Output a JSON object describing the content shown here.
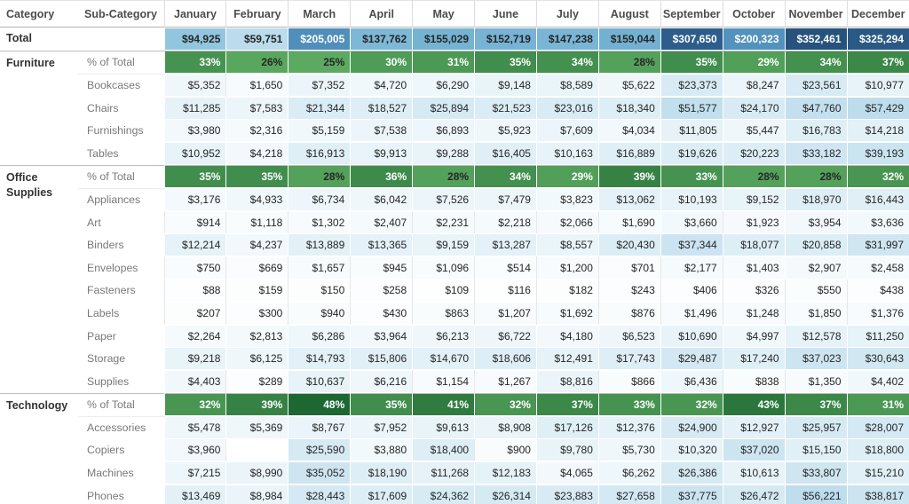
{
  "table": {
    "header": {
      "category": "Category",
      "subcategory": "Sub-Category"
    },
    "total_label": "Total",
    "pct_label": "% of Total"
  },
  "chart_data": {
    "type": "heatmap",
    "title": "Sales highlight table by Category / Sub-Category and Month",
    "columns": [
      "January",
      "February",
      "March",
      "April",
      "May",
      "June",
      "July",
      "August",
      "September",
      "October",
      "November",
      "December"
    ],
    "value_format": "usd",
    "total": {
      "label": "Total",
      "values": [
        94925,
        59751,
        205005,
        137762,
        155029,
        152719,
        147238,
        159044,
        307650,
        200323,
        352461,
        325294
      ]
    },
    "groups": [
      {
        "category": "Furniture",
        "pct_of_total": [
          33,
          26,
          25,
          30,
          31,
          35,
          34,
          28,
          35,
          29,
          34,
          37
        ],
        "rows": [
          {
            "label": "Bookcases",
            "values": [
              5352,
              1650,
              7352,
              4720,
              6290,
              9148,
              8589,
              5622,
              23373,
              8247,
              23561,
              10977
            ]
          },
          {
            "label": "Chairs",
            "values": [
              11285,
              7583,
              21344,
              18527,
              25894,
              21523,
              23016,
              18340,
              51577,
              24170,
              47760,
              57429
            ]
          },
          {
            "label": "Furnishings",
            "values": [
              3980,
              2316,
              5159,
              7538,
              6893,
              5923,
              7609,
              4034,
              11805,
              5447,
              16783,
              14218
            ]
          },
          {
            "label": "Tables",
            "values": [
              10952,
              4218,
              16913,
              9913,
              9288,
              16405,
              10163,
              16889,
              19626,
              20223,
              33182,
              39193
            ]
          }
        ]
      },
      {
        "category": "Office Supplies",
        "pct_of_total": [
          35,
          35,
          28,
          36,
          28,
          34,
          29,
          39,
          33,
          28,
          28,
          32
        ],
        "rows": [
          {
            "label": "Appliances",
            "values": [
              3176,
              4933,
              6734,
              6042,
              7526,
              7479,
              3823,
              13062,
              10193,
              9152,
              18970,
              16443
            ]
          },
          {
            "label": "Art",
            "values": [
              914,
              1118,
              1302,
              2407,
              2231,
              2218,
              2066,
              1690,
              3660,
              1923,
              3954,
              3636
            ]
          },
          {
            "label": "Binders",
            "values": [
              12214,
              4237,
              13889,
              13365,
              9159,
              13287,
              8557,
              20430,
              37344,
              18077,
              20858,
              31997
            ]
          },
          {
            "label": "Envelopes",
            "values": [
              750,
              669,
              1657,
              945,
              1096,
              514,
              1200,
              701,
              2177,
              1403,
              2907,
              2458
            ]
          },
          {
            "label": "Fasteners",
            "values": [
              88,
              159,
              150,
              258,
              109,
              116,
              182,
              243,
              406,
              326,
              550,
              438
            ]
          },
          {
            "label": "Labels",
            "values": [
              207,
              300,
              940,
              430,
              863,
              1207,
              1692,
              876,
              1496,
              1248,
              1850,
              1376
            ]
          },
          {
            "label": "Paper",
            "values": [
              2264,
              2813,
              6286,
              3964,
              6213,
              6722,
              4180,
              6523,
              10690,
              4997,
              12578,
              11250
            ]
          },
          {
            "label": "Storage",
            "values": [
              9218,
              6125,
              14793,
              15806,
              14670,
              18606,
              12491,
              17743,
              29487,
              17240,
              37023,
              30643
            ]
          },
          {
            "label": "Supplies",
            "values": [
              4403,
              289,
              10637,
              6216,
              1154,
              1267,
              8816,
              866,
              6436,
              838,
              1350,
              4402
            ]
          }
        ]
      },
      {
        "category": "Technology",
        "pct_of_total": [
          32,
          39,
          48,
          35,
          41,
          32,
          37,
          33,
          32,
          43,
          37,
          31
        ],
        "rows": [
          {
            "label": "Accessories",
            "values": [
              5478,
              5369,
              8767,
              7952,
              9613,
              8908,
              17126,
              12376,
              24900,
              12927,
              25957,
              28007
            ]
          },
          {
            "label": "Copiers",
            "values": [
              3960,
              null,
              25590,
              3880,
              18400,
              900,
              9780,
              5730,
              10320,
              37020,
              15150,
              18800
            ]
          },
          {
            "label": "Machines",
            "values": [
              7215,
              8990,
              35052,
              18190,
              11268,
              12183,
              4065,
              6262,
              26386,
              10613,
              33807,
              15210
            ]
          },
          {
            "label": "Phones",
            "values": [
              13469,
              8984,
              28443,
              17609,
              24362,
              26314,
              23883,
              27658,
              37775,
              26472,
              56221,
              38817
            ]
          }
        ]
      }
    ],
    "scale": {
      "dollar_max": 352461,
      "dollar_white_text_threshold": 0.7,
      "pct_min": 25,
      "pct_max": 48,
      "pct_white_text_min": 29
    },
    "colors": {
      "blue_stops": [
        [
          0,
          "#ffffff"
        ],
        [
          0.13,
          "#eff7fb"
        ],
        [
          0.26,
          "#d8ebf4"
        ],
        [
          0.41,
          "#bcdcec"
        ],
        [
          0.52,
          "#92c5de"
        ],
        [
          0.67,
          "#74b2d3"
        ],
        [
          0.76,
          "#5190bb"
        ],
        [
          0.93,
          "#2d5e8c"
        ],
        [
          1,
          "#26527c"
        ]
      ],
      "green_low": "#5caa61",
      "green_high": "#1d6832",
      "text_dark": "#262626",
      "text_light": "#ffffff",
      "grid_hairline": "#e7e7e7"
    },
    "legend_position": "none",
    "grid": "hairline"
  }
}
